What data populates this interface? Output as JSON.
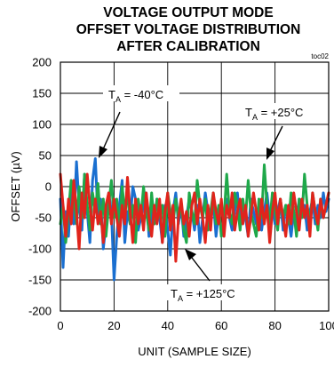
{
  "chart_data": {
    "type": "line",
    "title": [
      "VOLTAGE OUTPUT MODE",
      "OFFSET VOLTAGE DISTRIBUTION",
      "AFTER CALIBRATION"
    ],
    "tag": "toc02",
    "xlabel": "UNIT (SAMPLE SIZE)",
    "ylabel": "OFFSET (µV)",
    "xlim": [
      0,
      100
    ],
    "ylim": [
      -200,
      200
    ],
    "xticks": [
      0,
      20,
      40,
      60,
      80,
      100
    ],
    "yticks": [
      200,
      150,
      100,
      50,
      0,
      -50,
      -100,
      -150,
      -200
    ],
    "grid": true,
    "annotations": [
      {
        "main": "T",
        "sub": "A",
        "rest": " = -40°C"
      },
      {
        "main": "T",
        "sub": "A",
        "rest": " = +25°C"
      },
      {
        "main": "T",
        "sub": "A",
        "rest": " = +125°C"
      }
    ],
    "series": [
      {
        "color": "#1a6fd0",
        "x": [
          0,
          1,
          2,
          3,
          4,
          5,
          6,
          7,
          8,
          9,
          10,
          11,
          12,
          13,
          14,
          15,
          16,
          17,
          18,
          19,
          20,
          21,
          22,
          23,
          24,
          25,
          26,
          27,
          28,
          29,
          30,
          31,
          32,
          33,
          34,
          35,
          36,
          37,
          38,
          39,
          40,
          41,
          42,
          43,
          44,
          45,
          46,
          47,
          48,
          49,
          50,
          51,
          52,
          53,
          54,
          55,
          56,
          57,
          58,
          59,
          60,
          61,
          62,
          63,
          64,
          65,
          66,
          67,
          68,
          69,
          70,
          71,
          72,
          73,
          74,
          75,
          76,
          77,
          78,
          79,
          80,
          81,
          82,
          83,
          84,
          85,
          86,
          87,
          88,
          89,
          90,
          91,
          92,
          93,
          94,
          95,
          96,
          97,
          98,
          99,
          100
        ],
        "values": [
          -20,
          -130,
          -40,
          -80,
          -10,
          -60,
          40,
          -30,
          -70,
          20,
          -40,
          -90,
          10,
          45,
          -50,
          -20,
          -100,
          -60,
          -10,
          -40,
          -150,
          -80,
          -30,
          10,
          -90,
          -40,
          -60,
          0,
          -20,
          -70,
          -50,
          -30,
          -10,
          -80,
          -40,
          -60,
          -20,
          -50,
          -90,
          -30,
          -70,
          -110,
          -40,
          -10,
          -60,
          -30,
          -80,
          -50,
          -20,
          -40,
          -70,
          -30,
          -90,
          -50,
          -10,
          -40,
          -60,
          -20,
          -80,
          -40,
          -30,
          -60,
          -20,
          -50,
          -70,
          -40,
          -10,
          -60,
          -30,
          -50,
          -80,
          -20,
          -40,
          -60,
          -30,
          -70,
          -40,
          -10,
          -50,
          -30,
          -60,
          -40,
          -20,
          -70,
          -30,
          -50,
          -80,
          -40,
          -60,
          -20,
          -50,
          -30,
          -70,
          -40,
          -20,
          -60,
          -30,
          -50,
          -10,
          -40,
          -20
        ]
      },
      {
        "color": "#1fa84a",
        "x": [
          0,
          1,
          2,
          3,
          4,
          5,
          6,
          7,
          8,
          9,
          10,
          11,
          12,
          13,
          14,
          15,
          16,
          17,
          18,
          19,
          20,
          21,
          22,
          23,
          24,
          25,
          26,
          27,
          28,
          29,
          30,
          31,
          32,
          33,
          34,
          35,
          36,
          37,
          38,
          39,
          40,
          41,
          42,
          43,
          44,
          45,
          46,
          47,
          48,
          49,
          50,
          51,
          52,
          53,
          54,
          55,
          56,
          57,
          58,
          59,
          60,
          61,
          62,
          63,
          64,
          65,
          66,
          67,
          68,
          69,
          70,
          71,
          72,
          73,
          74,
          75,
          76,
          77,
          78,
          79,
          80,
          81,
          82,
          83,
          84,
          85,
          86,
          87,
          88,
          89,
          90,
          91,
          92,
          93,
          94,
          95,
          96,
          97,
          98,
          99,
          100
        ],
        "values": [
          -60,
          -30,
          -90,
          -40,
          10,
          -20,
          -60,
          0,
          -50,
          20,
          -30,
          -70,
          -10,
          -40,
          5,
          -60,
          -20,
          -80,
          -30,
          10,
          -50,
          -20,
          -70,
          0,
          -40,
          -10,
          -60,
          -30,
          -90,
          -20,
          -50,
          0,
          -40,
          -70,
          -10,
          -60,
          -20,
          -50,
          -30,
          -80,
          -10,
          -40,
          -60,
          -20,
          -50,
          -30,
          -70,
          -90,
          -10,
          -40,
          -60,
          10,
          -30,
          -50,
          -20,
          -70,
          -40,
          -10,
          -60,
          -30,
          -80,
          -50,
          20,
          -40,
          -60,
          -10,
          -30,
          -70,
          -20,
          -50,
          10,
          -40,
          -60,
          -80,
          -20,
          -50,
          35,
          -30,
          -60,
          -10,
          -40,
          -70,
          -20,
          -50,
          -30,
          -60,
          -10,
          -40,
          -80,
          -20,
          -50,
          20,
          -30,
          -60,
          -10,
          -40,
          -70,
          -20,
          -50,
          -30,
          -10
        ]
      },
      {
        "color": "#e0241c",
        "x": [
          0,
          1,
          2,
          3,
          4,
          5,
          6,
          7,
          8,
          9,
          10,
          11,
          12,
          13,
          14,
          15,
          16,
          17,
          18,
          19,
          20,
          21,
          22,
          23,
          24,
          25,
          26,
          27,
          28,
          29,
          30,
          31,
          32,
          33,
          34,
          35,
          36,
          37,
          38,
          39,
          40,
          41,
          42,
          43,
          44,
          45,
          46,
          47,
          48,
          49,
          50,
          51,
          52,
          53,
          54,
          55,
          56,
          57,
          58,
          59,
          60,
          61,
          62,
          63,
          64,
          65,
          66,
          67,
          68,
          69,
          70,
          71,
          72,
          73,
          74,
          75,
          76,
          77,
          78,
          79,
          80,
          81,
          82,
          83,
          84,
          85,
          86,
          87,
          88,
          89,
          90,
          91,
          92,
          93,
          94,
          95,
          96,
          97,
          98,
          99,
          100
        ],
        "values": [
          20,
          -30,
          -80,
          -20,
          -60,
          10,
          -40,
          -100,
          -10,
          -50,
          20,
          -30,
          -70,
          -20,
          -60,
          -40,
          -90,
          -30,
          -10,
          -60,
          -20,
          -50,
          -80,
          -30,
          -60,
          15,
          -40,
          -90,
          -20,
          -60,
          -30,
          -70,
          -10,
          -50,
          -80,
          -30,
          -60,
          -20,
          -90,
          -40,
          -10,
          -70,
          -30,
          -120,
          -50,
          -20,
          -60,
          -40,
          -80,
          -30,
          -10,
          -60,
          -20,
          -50,
          -90,
          -30,
          -70,
          -10,
          -40,
          -60,
          -20,
          -80,
          -30,
          -50,
          -10,
          -70,
          -40,
          -20,
          -60,
          -30,
          -80,
          -50,
          -10,
          -40,
          -70,
          -20,
          -60,
          -30,
          -90,
          -40,
          -10,
          -60,
          -20,
          -50,
          -80,
          -30,
          -60,
          -10,
          -40,
          -70,
          -20,
          -50,
          -30,
          -80,
          -10,
          -40,
          -60,
          -20,
          -50,
          -30,
          -10
        ]
      }
    ]
  }
}
